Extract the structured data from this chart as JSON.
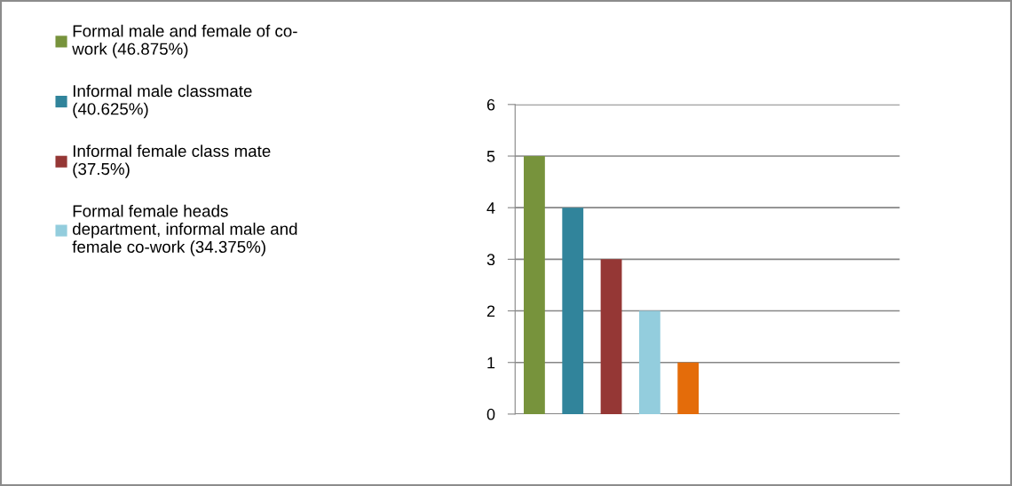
{
  "chart_data": {
    "type": "bar",
    "categories": [
      null
    ],
    "series": [
      {
        "name": "Formal male and female of co-work (46.875%)",
        "color": "#77933c",
        "values": [
          5
        ]
      },
      {
        "name": "Informal male classmate (40.625%)",
        "color": "#31849b",
        "values": [
          4
        ]
      },
      {
        "name": "Informal female class mate (37.5%)",
        "color": "#953735",
        "values": [
          3
        ]
      },
      {
        "name": "Formal female heads department, informal male and female co-work (34.375%)",
        "color": "#93cddd",
        "values": [
          2
        ]
      },
      {
        "color": "#e46c0a",
        "values": [
          1
        ]
      }
    ],
    "ylim": [
      0,
      6
    ],
    "yticks": [
      0,
      1,
      2,
      3,
      4,
      5,
      6
    ],
    "grid": "y",
    "legend": "left"
  }
}
